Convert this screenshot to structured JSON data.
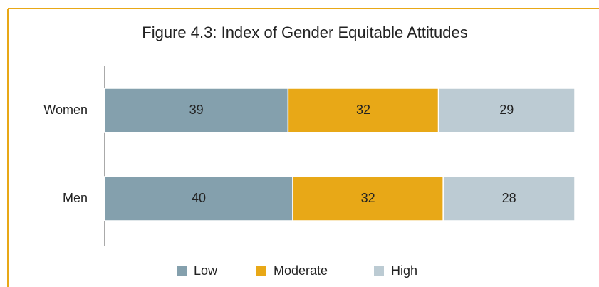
{
  "chart_data": {
    "type": "stacked-barh",
    "title": "Figure 4.3: Index of Gender Equitable Attitudes",
    "categories": [
      "Women",
      "Men"
    ],
    "series": [
      {
        "name": "Low",
        "color": "#84a0ad",
        "values": [
          39,
          40
        ]
      },
      {
        "name": "Moderate",
        "color": "#e8a817",
        "values": [
          32,
          32
        ]
      },
      {
        "name": "High",
        "color": "#bccbd3",
        "values": [
          29,
          28
        ]
      }
    ],
    "xlim": [
      0,
      100
    ],
    "legend": "bottom"
  }
}
